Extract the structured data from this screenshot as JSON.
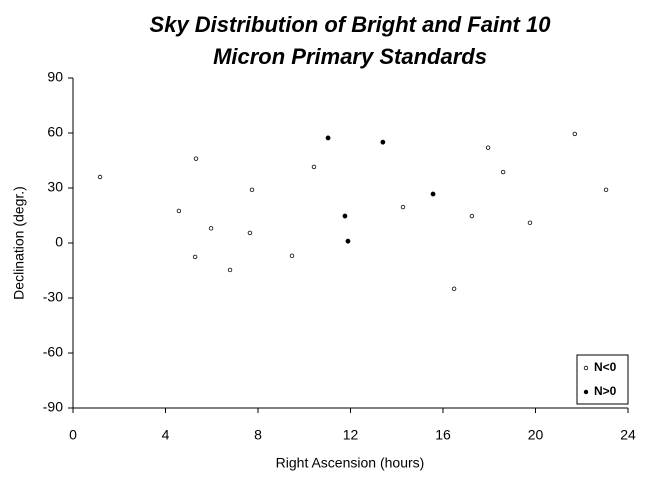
{
  "chart_data": {
    "type": "scatter",
    "title": [
      "Sky Distribution of Bright and Faint 10",
      "Micron Primary Standards"
    ],
    "x_label": "Right Ascension (hours)",
    "y_label": "Declination (degr.)",
    "xlim": [
      0,
      24
    ],
    "xticks": [
      0,
      4,
      8,
      12,
      16,
      20,
      24
    ],
    "ylim": [
      -90,
      90
    ],
    "yticks": [
      -90,
      -60,
      -30,
      0,
      30,
      60,
      90
    ],
    "legend_position": "lower right",
    "series": [
      {
        "name": "N<0",
        "color": "#000000",
        "marker": "open",
        "x": [
          1.17,
          4.58,
          5.32,
          5.97,
          5.28,
          6.79,
          7.74,
          7.65,
          9.47,
          10.42,
          14.27,
          16.48,
          17.25,
          17.95,
          18.6,
          19.76,
          21.7,
          23.05
        ],
        "values": [
          36,
          17.5,
          46,
          8,
          -7.6,
          -14.7,
          29,
          5.5,
          -7,
          41.5,
          19.6,
          -25,
          14.7,
          52,
          38.7,
          11,
          59.5,
          29
        ]
      },
      {
        "name": "N>0",
        "color": "#000000",
        "marker": "filled",
        "x": [
          11.03,
          11.76,
          11.89,
          13.4,
          15.57
        ],
        "values": [
          57.3,
          14.7,
          1,
          55,
          26.7
        ]
      }
    ]
  }
}
